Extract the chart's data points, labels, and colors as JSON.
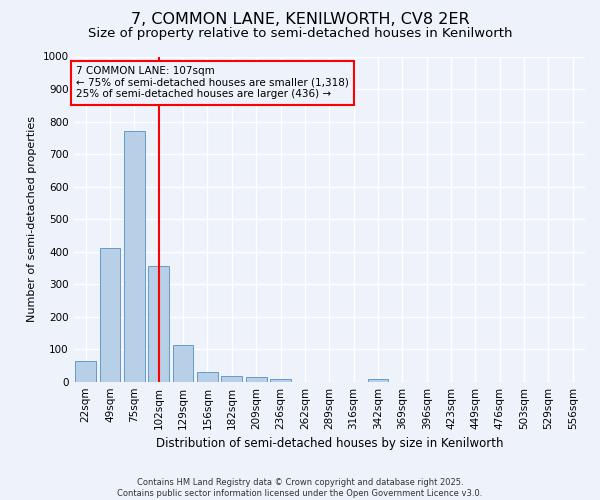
{
  "title": "7, COMMON LANE, KENILWORTH, CV8 2ER",
  "subtitle": "Size of property relative to semi-detached houses in Kenilworth",
  "xlabel": "Distribution of semi-detached houses by size in Kenilworth",
  "ylabel": "Number of semi-detached properties",
  "categories": [
    "22sqm",
    "49sqm",
    "75sqm",
    "102sqm",
    "129sqm",
    "156sqm",
    "182sqm",
    "209sqm",
    "236sqm",
    "262sqm",
    "289sqm",
    "316sqm",
    "342sqm",
    "369sqm",
    "396sqm",
    "423sqm",
    "449sqm",
    "476sqm",
    "503sqm",
    "529sqm",
    "556sqm"
  ],
  "values": [
    65,
    410,
    770,
    355,
    113,
    30,
    18,
    13,
    8,
    0,
    0,
    0,
    8,
    0,
    0,
    0,
    0,
    0,
    0,
    0,
    0
  ],
  "bar_color": "#b8cfe8",
  "bar_edge_color": "#6699cc",
  "vline_x": 3.0,
  "vline_color": "red",
  "annotation_title": "7 COMMON LANE: 107sqm",
  "annotation_line1": "← 75% of semi-detached houses are smaller (1,318)",
  "annotation_line2": "25% of semi-detached houses are larger (436) →",
  "annotation_box_color": "red",
  "ylim": [
    0,
    1000
  ],
  "yticks": [
    0,
    100,
    200,
    300,
    400,
    500,
    600,
    700,
    800,
    900,
    1000
  ],
  "footer_line1": "Contains HM Land Registry data © Crown copyright and database right 2025.",
  "footer_line2": "Contains public sector information licensed under the Open Government Licence v3.0.",
  "bg_color": "#eef2fb",
  "grid_color": "#ffffff",
  "title_fontsize": 11.5,
  "subtitle_fontsize": 9.5,
  "axis_fontsize": 8,
  "tick_fontsize": 7.5,
  "footer_fontsize": 6,
  "annotation_fontsize": 7.5
}
